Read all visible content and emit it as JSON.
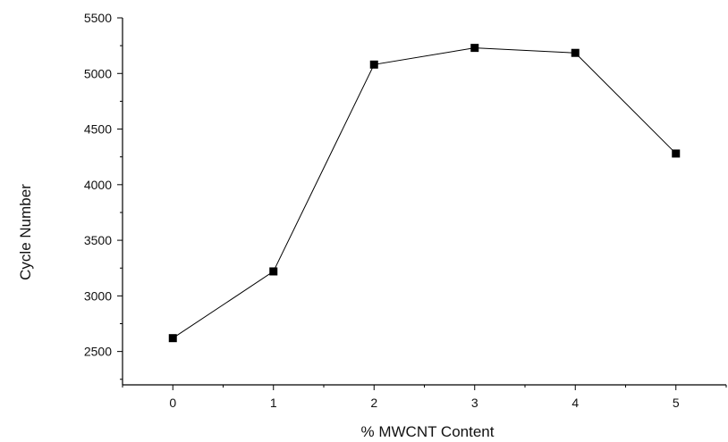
{
  "chart_data": {
    "type": "line",
    "xlabel": "% MWCNT Content",
    "ylabel": "Cycle Number",
    "x": [
      0,
      1,
      2,
      3,
      4,
      5
    ],
    "series": [
      {
        "values": [
          2620,
          3220,
          5080,
          5230,
          5185,
          4280
        ]
      }
    ],
    "xlim": [
      -0.5,
      5.5
    ],
    "ylim": [
      2200,
      5500
    ],
    "xticks": [
      "0",
      "1",
      "2",
      "3",
      "4",
      "5"
    ],
    "yticks": [
      "2500",
      "3000",
      "3500",
      "4000",
      "4500",
      "5000",
      "5500"
    ],
    "marker": "square",
    "line_color": "#000000",
    "marker_color": "#000000",
    "grid": false,
    "legend": "none"
  }
}
